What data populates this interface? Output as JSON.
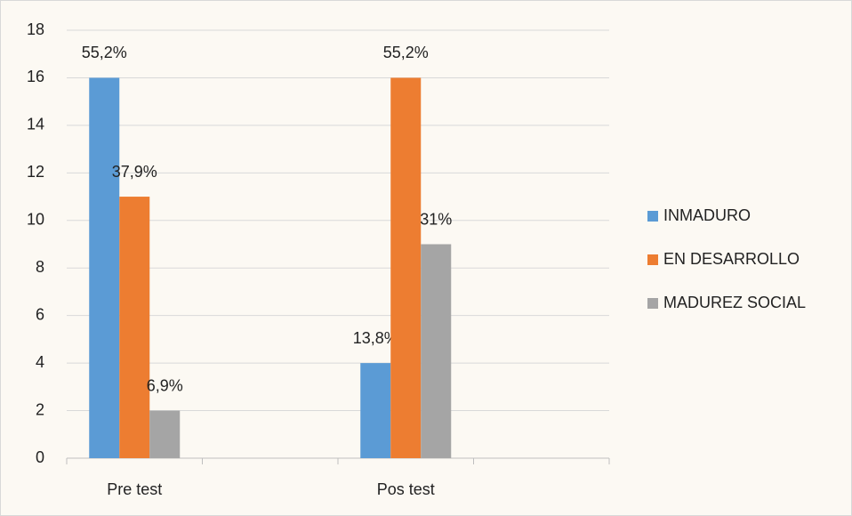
{
  "chart_data": {
    "type": "bar",
    "categories": [
      "Pre test",
      null,
      "Pos test",
      null
    ],
    "series": [
      {
        "name": "INMADURO",
        "color": "#5b9bd5",
        "values": [
          16,
          null,
          4,
          null
        ],
        "percent_labels": [
          "55,2%",
          null,
          "13,8%",
          null
        ]
      },
      {
        "name": "EN DESARROLLO",
        "color": "#ed7d31",
        "values": [
          11,
          null,
          16,
          null
        ],
        "percent_labels": [
          "37,9%",
          null,
          "55,2%",
          null
        ]
      },
      {
        "name": "MADUREZ SOCIAL",
        "color": "#a5a5a5",
        "values": [
          2,
          null,
          9,
          null
        ],
        "percent_labels": [
          "6,9%",
          null,
          "31%",
          null
        ]
      }
    ],
    "ylim": [
      0,
      18
    ],
    "yticks": [
      0,
      2,
      4,
      6,
      8,
      10,
      12,
      14,
      16,
      18
    ],
    "grid": true,
    "legend": "right"
  }
}
